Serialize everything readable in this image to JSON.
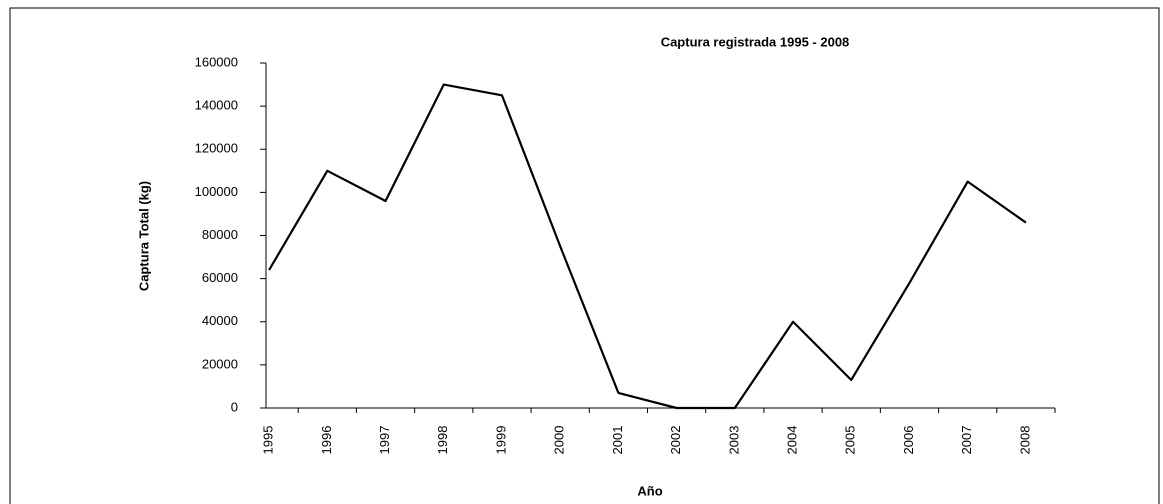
{
  "chart_data": {
    "type": "line",
    "title": "Captura registrada 1995 - 2008",
    "y_label": "Captura Total (kg)",
    "x_label": "Año",
    "categories": [
      "1995",
      "1996",
      "1997",
      "1998",
      "1999",
      "2000",
      "2001",
      "2002",
      "2003",
      "2004",
      "2005",
      "2006",
      "2007",
      "2008"
    ],
    "values": [
      64000,
      110000,
      96000,
      150000,
      145000,
      75000,
      7000,
      0,
      0,
      40000,
      13000,
      58000,
      105000,
      86000
    ],
    "color": "#000000",
    "ylim": [
      0,
      160000
    ],
    "yticks": [
      0,
      20000,
      40000,
      60000,
      80000,
      100000,
      120000,
      140000,
      160000
    ],
    "grid": false
  }
}
